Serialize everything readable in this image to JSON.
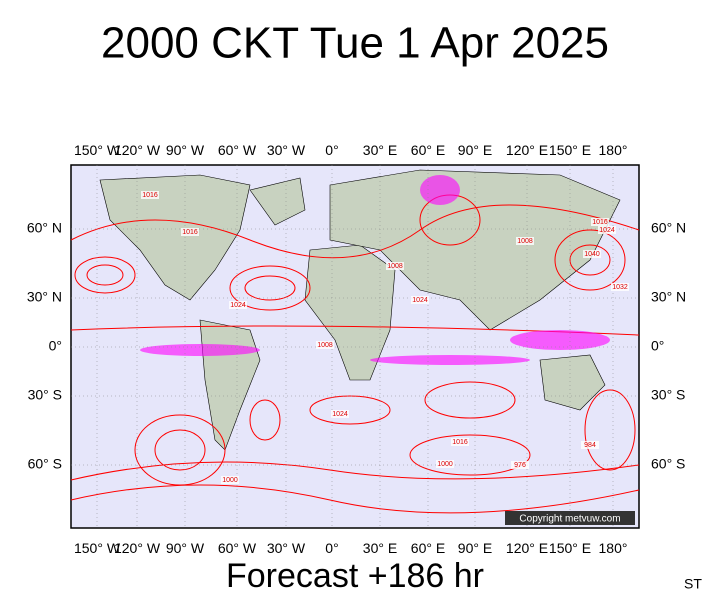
{
  "header": {
    "title": "2000 CKT Tue 1 Apr 2025"
  },
  "map": {
    "lon_labels": [
      "150° W",
      "120° W",
      "90° W",
      "60° W",
      "30° W",
      "0°",
      "30° E",
      "60° E",
      "90° E",
      "120° E",
      "150° E",
      "180°"
    ],
    "lat_labels": [
      "60° N",
      "30° N",
      "0°",
      "30° S",
      "60° S"
    ],
    "isobar_labels": [
      "1024",
      "1016",
      "1008",
      "1024",
      "1016",
      "1024",
      "1008",
      "1016",
      "1000",
      "1040",
      "1032",
      "1024",
      "1016",
      "1008",
      "1000",
      "984",
      "976"
    ],
    "copyright": "Copyright metvuw.com"
  },
  "footer": {
    "forecast": "Forecast +186 hr",
    "code": "ST"
  }
}
